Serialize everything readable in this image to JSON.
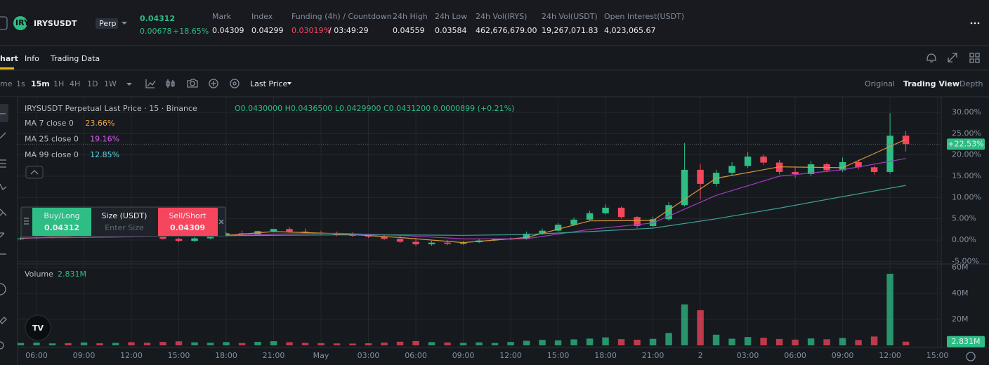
{
  "header": {
    "symbol": "IRYSUSDT",
    "badge": "Perp",
    "price": "0.04312",
    "change": "0.00678",
    "change_pct": "+18.65%",
    "stats": [
      {
        "label": "Mark",
        "value": "0.04309"
      },
      {
        "label": "Index",
        "value": "0.04299"
      },
      {
        "label": "Funding (4h) / Countdown",
        "value": "0.03019%",
        "extra": "/ 03:49:29"
      },
      {
        "label": "24h High",
        "value": "0.04559"
      },
      {
        "label": "24h Low",
        "value": "0.03584"
      },
      {
        "label": "24h Vol(IRYS)",
        "value": "462,676,679.00"
      },
      {
        "label": "24h Vol(USDT)",
        "value": "19,267,071.83"
      },
      {
        "label": "Open Interest(USDT)",
        "value": "4,023,065.67"
      }
    ]
  },
  "tabs": [
    "hart",
    "Info",
    "Trading Data"
  ],
  "toolbar": {
    "intervals": [
      "me",
      "1s",
      "15m",
      "1H",
      "4H",
      "1D",
      "1W"
    ],
    "price_type": "Last Price",
    "views": [
      "Original",
      "Trading View",
      "Depth"
    ]
  },
  "order_panel": {
    "buy": "Buy/Long",
    "buy_price": "0.04312",
    "size": "Size (USDT)",
    "size_placeholder": "Enter Size",
    "sell": "Sell/Short",
    "sell_price": "0.04309"
  },
  "chart_data": {
    "type": "candlestick",
    "title": "IRYSUSDT Perpetual Last Price · 15 · Binance",
    "ohlc_text": "O0.0430000 H0.0436500 L0.0429900 C0.0431200 0.0000899 (+0.21%)",
    "up_color": "#2ebd85",
    "down_color": "#f6465d",
    "grid": true,
    "xlim": [
      4.8,
      63.24
    ],
    "xticks": [
      {
        "value": 6,
        "label": "06:00"
      },
      {
        "value": 9,
        "label": "09:00"
      },
      {
        "value": 12,
        "label": "12:00"
      },
      {
        "value": 15,
        "label": "15:00"
      },
      {
        "value": 18,
        "label": "18:00"
      },
      {
        "value": 21,
        "label": "21:00"
      },
      {
        "value": 24,
        "label": "May"
      },
      {
        "value": 27,
        "label": "03:00"
      },
      {
        "value": 30,
        "label": "06:00"
      },
      {
        "value": 33,
        "label": "09:00"
      },
      {
        "value": 36,
        "label": "12:00"
      },
      {
        "value": 39,
        "label": "15:00"
      },
      {
        "value": 42,
        "label": "18:00"
      },
      {
        "value": 45,
        "label": "21:00"
      },
      {
        "value": 48,
        "label": "2"
      },
      {
        "value": 51,
        "label": "03:00"
      },
      {
        "value": 54,
        "label": "06:00"
      },
      {
        "value": 57,
        "label": "09:00"
      },
      {
        "value": 60,
        "label": "12:00"
      },
      {
        "value": 63,
        "label": "15:00"
      }
    ],
    "ylim": [
      -5.44,
      33.63
    ],
    "yticks": [
      {
        "value": 30,
        "label": "30.00%"
      },
      {
        "value": 25,
        "label": "25.00%"
      },
      {
        "value": 20,
        "label": "20.00%"
      },
      {
        "value": 15,
        "label": "15.00%"
      },
      {
        "value": 10,
        "label": "10.00%"
      },
      {
        "value": 5,
        "label": "5.00%"
      },
      {
        "value": 0,
        "label": "0.00%"
      },
      {
        "value": -5,
        "label": "-5.00%"
      }
    ],
    "x": [
      5,
      6,
      7,
      8,
      9,
      10,
      11,
      12,
      13,
      14,
      15,
      16,
      17,
      18,
      19,
      20,
      21,
      22,
      23,
      24,
      25,
      26,
      27,
      28,
      29,
      30,
      31,
      32,
      33,
      34,
      35,
      36,
      37,
      38,
      39,
      40,
      41,
      42,
      43,
      44,
      45,
      46,
      47,
      48,
      49,
      50,
      51,
      52,
      53,
      54,
      55,
      56,
      57,
      58,
      59,
      60,
      61
    ],
    "open": [
      0.2,
      0.4,
      0.6,
      0.9,
      0.7,
      1.2,
      1.0,
      1.4,
      1.3,
      0.9,
      0.3,
      -0.2,
      0.4,
      1.1,
      1.6,
      1.4,
      2.1,
      2.6,
      2.0,
      1.7,
      1.5,
      1.2,
      1.0,
      0.8,
      0.3,
      -0.4,
      -1.0,
      -0.6,
      -0.9,
      -0.5,
      -0.1,
      0.2,
      0.3,
      1.5,
      2.2,
      3.6,
      4.8,
      6.3,
      7.6,
      5.4,
      3.3,
      4.9,
      8.2,
      16.5,
      13.2,
      15.8,
      17.4,
      19.6,
      18.2,
      16.0,
      15.5,
      17.8,
      16.4,
      18.3,
      17.1,
      16.0,
      24.5
    ],
    "high": [
      0.7,
      0.9,
      1.2,
      1.3,
      1.5,
      1.6,
      1.7,
      1.8,
      1.6,
      1.2,
      0.6,
      0.7,
      1.2,
      1.8,
      2.2,
      2.2,
      2.6,
      3.1,
      2.7,
      2.2,
      2.0,
      1.8,
      1.5,
      1.3,
      1.0,
      0.5,
      -0.2,
      0.0,
      -0.2,
      0.2,
      0.4,
      0.6,
      2.0,
      2.7,
      4.0,
      5.3,
      6.9,
      8.4,
      7.9,
      5.6,
      5.5,
      8.9,
      22.8,
      17.8,
      16.5,
      18.3,
      20.6,
      20.1,
      18.8,
      17.2,
      18.6,
      18.2,
      19.4,
      18.9,
      17.5,
      29.8,
      25.6
    ],
    "low": [
      0.0,
      0.2,
      0.4,
      0.5,
      0.5,
      0.8,
      0.8,
      1.0,
      0.7,
      0.1,
      -0.5,
      -0.4,
      0.2,
      0.9,
      1.1,
      1.2,
      1.8,
      1.7,
      1.4,
      1.2,
      0.9,
      0.7,
      0.5,
      0.0,
      -0.7,
      -1.4,
      -1.3,
      -1.2,
      -1.1,
      -0.7,
      -0.3,
      0.0,
      0.1,
      1.2,
      2.0,
      3.3,
      4.5,
      6.0,
      5.0,
      2.8,
      3.0,
      4.5,
      7.9,
      9.5,
      12.6,
      15.2,
      17.0,
      17.6,
      15.4,
      14.6,
      15.0,
      15.9,
      16.0,
      16.6,
      15.4,
      15.6,
      20.8
    ],
    "close": [
      0.4,
      0.6,
      0.9,
      0.7,
      1.2,
      1.0,
      1.4,
      1.3,
      0.9,
      0.3,
      -0.2,
      0.4,
      1.1,
      1.6,
      1.4,
      2.1,
      2.6,
      2.0,
      1.7,
      1.5,
      1.2,
      1.0,
      0.8,
      0.3,
      -0.4,
      -1.0,
      -0.6,
      -0.9,
      -0.5,
      -0.1,
      0.2,
      0.3,
      1.5,
      2.2,
      3.6,
      4.8,
      6.3,
      7.6,
      5.4,
      3.3,
      4.9,
      8.2,
      16.5,
      13.2,
      15.8,
      17.4,
      19.6,
      18.2,
      16.0,
      15.5,
      17.8,
      16.4,
      18.3,
      17.1,
      16.0,
      24.5,
      22.53
    ],
    "last_price": {
      "value": 22.53,
      "label": "+22.53%"
    },
    "ma_series": [
      {
        "name": "MA 7 close 0",
        "color": "#d8953b",
        "label_color": "#f0a64a",
        "x": [
          5,
          9,
          13,
          17,
          21,
          25,
          29,
          33,
          37,
          41,
          45,
          49,
          53,
          57,
          61
        ],
        "values": [
          0.4,
          0.9,
          1.1,
          0.8,
          2.0,
          1.5,
          0.6,
          -0.6,
          0.6,
          4.5,
          4.6,
          14.5,
          17.2,
          17.0,
          23.66
        ],
        "legend_value": {
          "value": 23.66,
          "label": "23.66%"
        }
      },
      {
        "name": "MA 25 close 0",
        "color": "#a23bc0",
        "label_color": "#d35ee8",
        "x": [
          5,
          9,
          13,
          17,
          21,
          25,
          29,
          33,
          37,
          41,
          45,
          49,
          53,
          57,
          61
        ],
        "values": [
          0.5,
          0.6,
          0.8,
          0.9,
          1.4,
          1.6,
          1.1,
          0.3,
          0.3,
          2.5,
          4.0,
          10.5,
          15.0,
          16.5,
          19.16
        ],
        "legend_value": {
          "value": 19.16,
          "label": "19.16%"
        }
      },
      {
        "name": "MA 99 close 0",
        "color": "#3f9e98",
        "label_color": "#5fd8e8",
        "x": [
          5,
          9,
          13,
          17,
          21,
          25,
          29,
          33,
          37,
          41,
          45,
          49,
          53,
          57,
          61
        ],
        "values": [
          0.9,
          0.9,
          1.0,
          1.0,
          1.1,
          1.2,
          1.2,
          1.1,
          1.3,
          2.0,
          2.8,
          5.0,
          7.5,
          10.2,
          12.85
        ],
        "legend_value": {
          "value": 12.85,
          "label": "12.85%"
        }
      }
    ],
    "volume": {
      "name": "Volume",
      "ylim": [
        0,
        61500000
      ],
      "yticks": [
        {
          "value": 20000000,
          "label": "20M"
        },
        {
          "value": 40000000,
          "label": "40M"
        },
        {
          "value": 60000000,
          "label": "60M"
        }
      ],
      "values": [
        1800000,
        2100000,
        1500000,
        1700000,
        2200000,
        1600000,
        1900000,
        2400000,
        2000000,
        2600000,
        3100000,
        2300000,
        2000000,
        2500000,
        1800000,
        2700000,
        3200000,
        2400000,
        1900000,
        1700000,
        1500000,
        1400000,
        1600000,
        2100000,
        2800000,
        3300000,
        2500000,
        2200000,
        1900000,
        2300000,
        1800000,
        2600000,
        3500000,
        4200000,
        3800000,
        4600000,
        5200000,
        6100000,
        4800000,
        4300000,
        5000000,
        9500000,
        31500000,
        27000000,
        8200000,
        5100000,
        6400000,
        5800000,
        4900000,
        4400000,
        5300000,
        4700000,
        5600000,
        4100000,
        6800000,
        55000000,
        2831000
      ],
      "last": {
        "value": 2831000,
        "label": "2.831M"
      }
    }
  }
}
